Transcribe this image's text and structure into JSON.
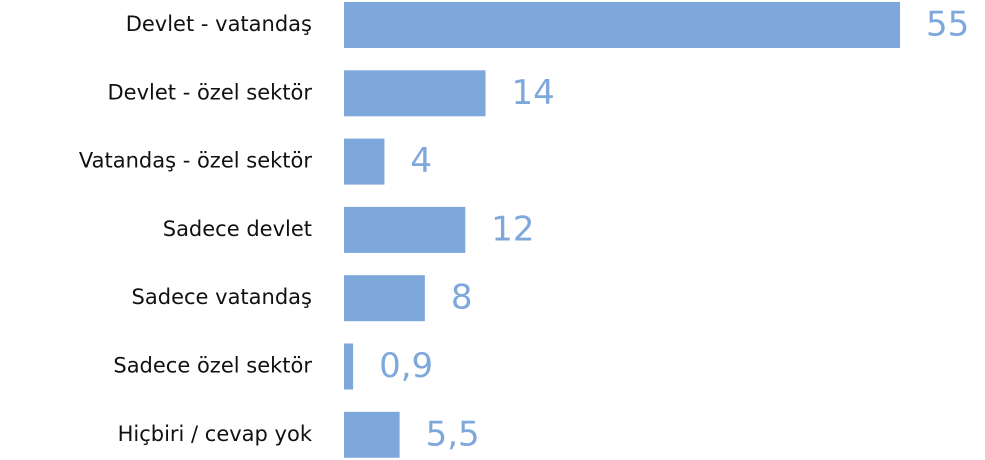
{
  "chart_data": {
    "type": "bar",
    "orientation": "horizontal",
    "categories": [
      "Devlet - vatandaş",
      "Devlet - özel sektör",
      "Vatandaş - özel sektör",
      "Sadece devlet",
      "Sadece vatandaş",
      "Sadece özel sektör",
      "Hiçbiri / cevap yok"
    ],
    "values": [
      55,
      14,
      4,
      12,
      8,
      0.9,
      5.5
    ],
    "value_labels": [
      "55",
      "14",
      "4",
      "12",
      "8",
      "0,9",
      "5,5"
    ],
    "color": "#7ea8dc"
  }
}
